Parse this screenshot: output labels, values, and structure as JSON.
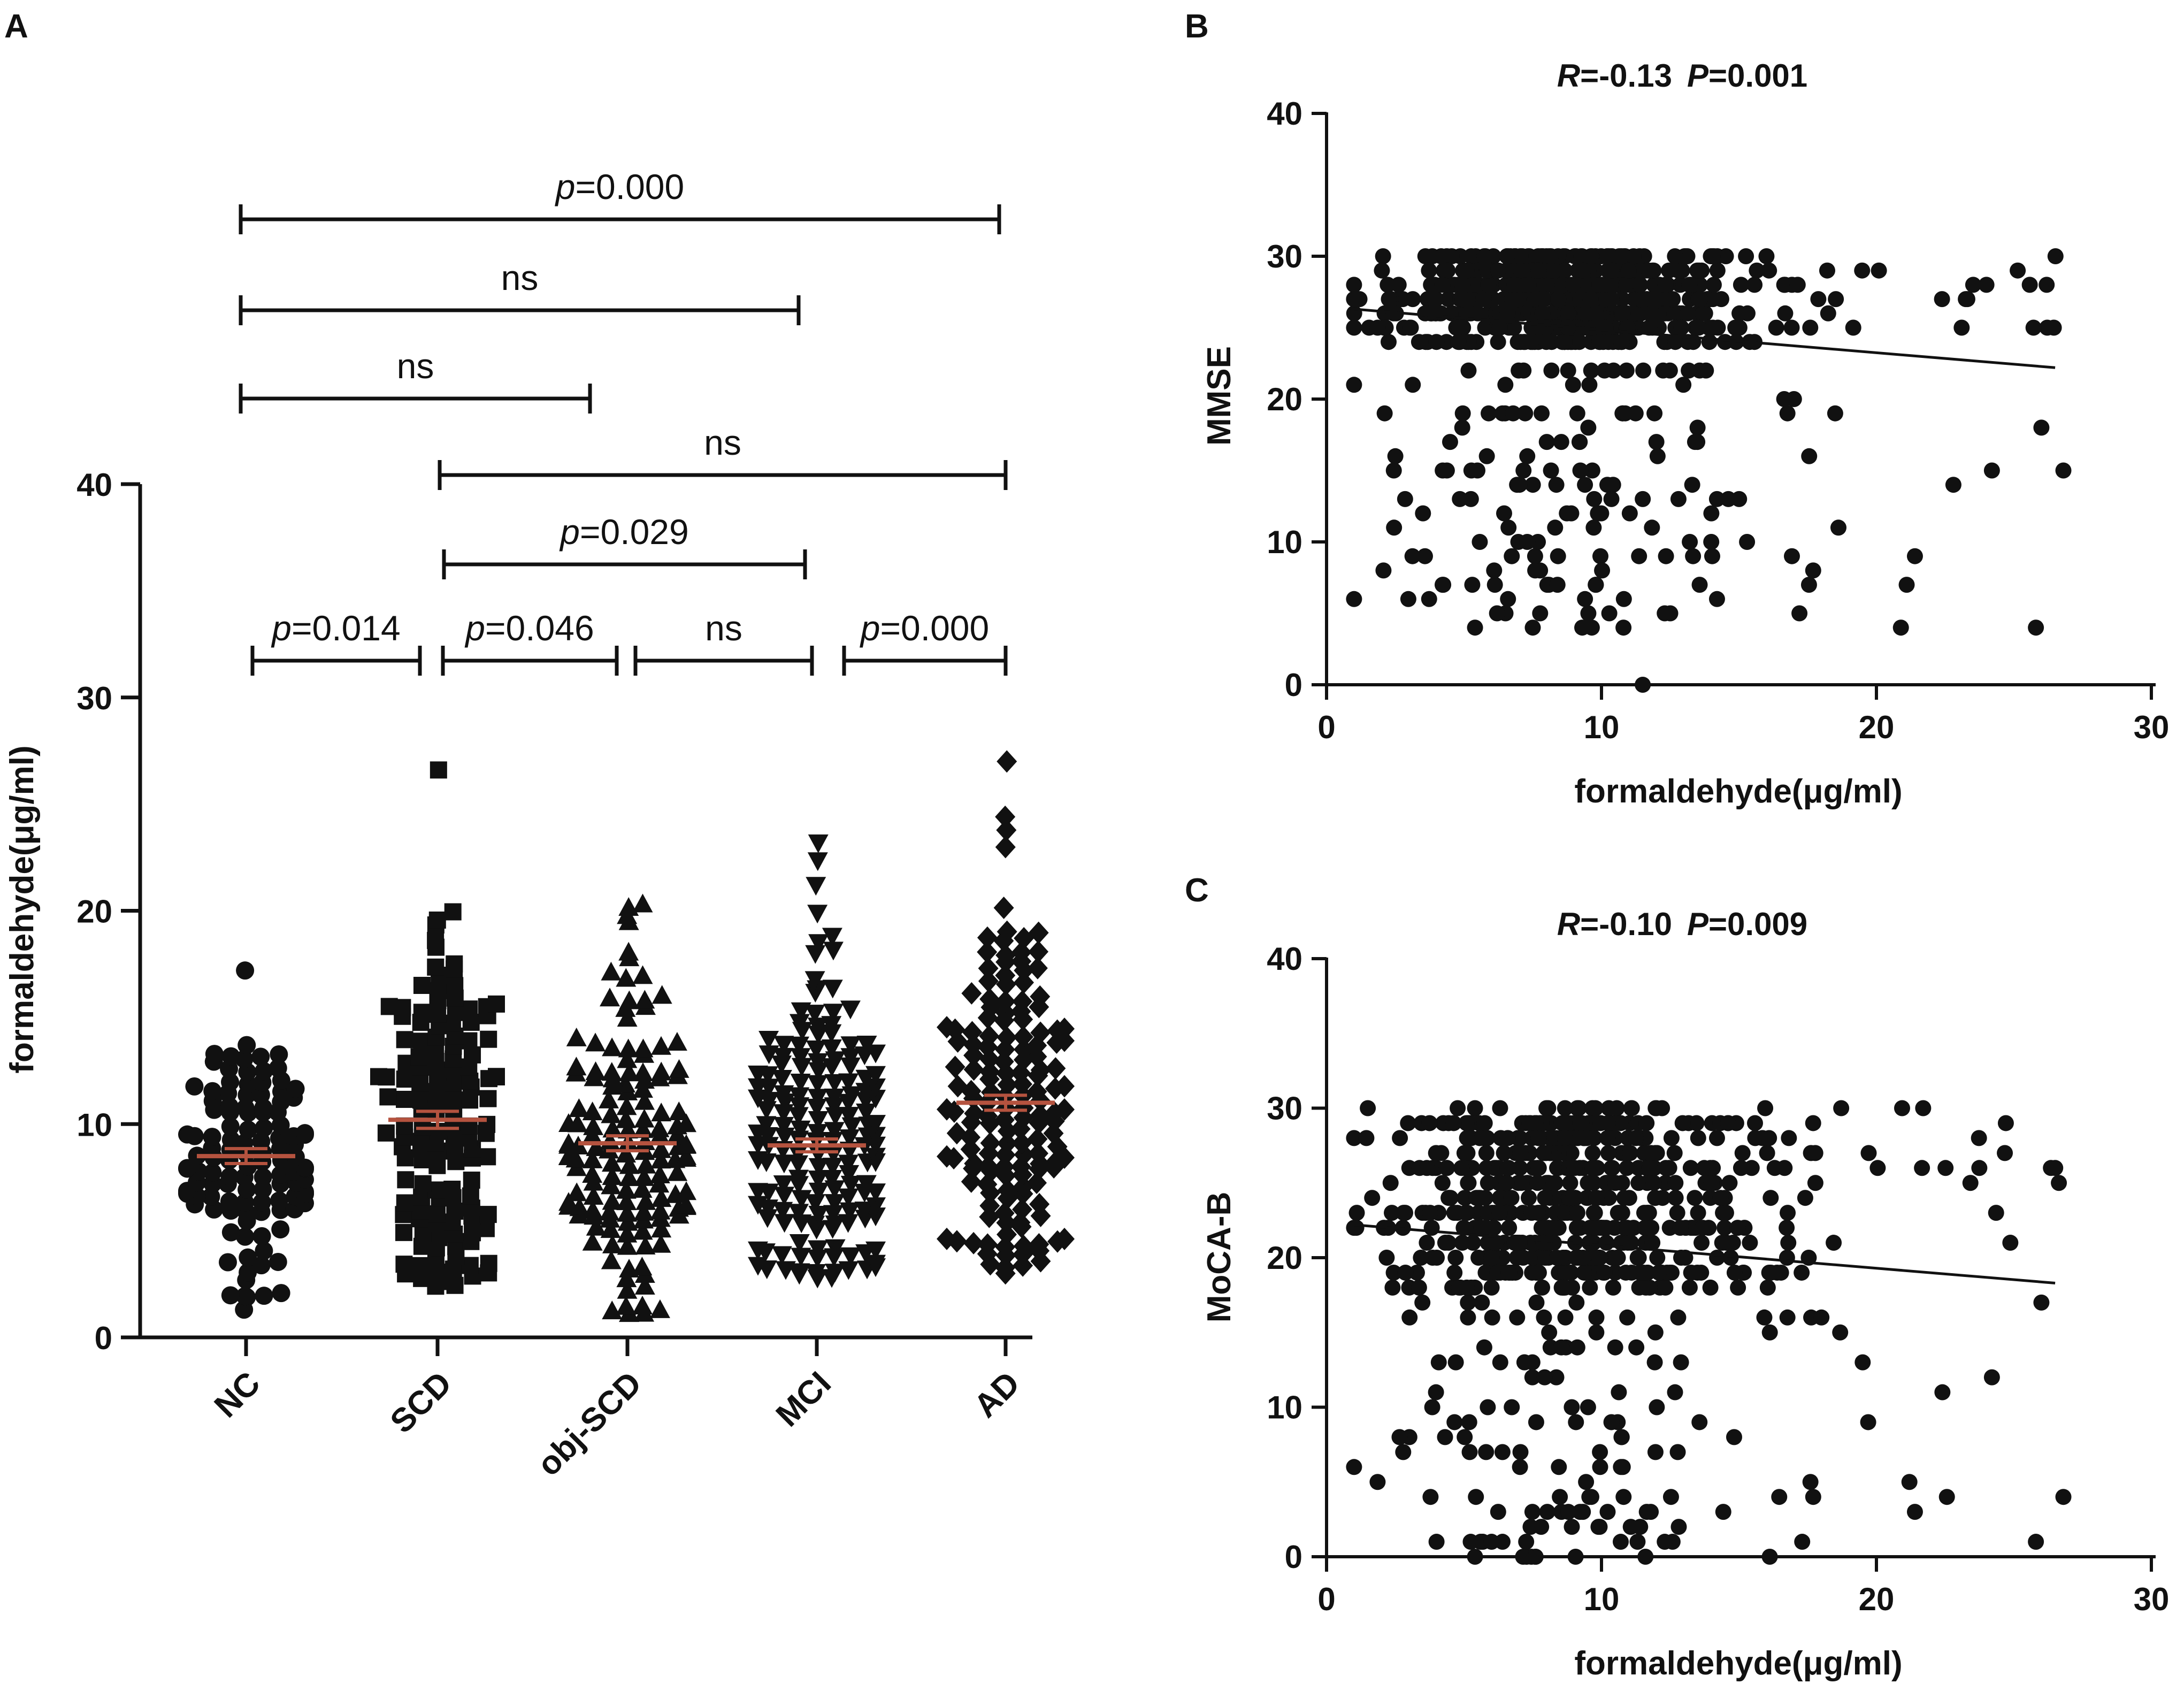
{
  "panel_labels": [
    "A",
    "B",
    "C"
  ],
  "chart_data": [
    {
      "panel": "A",
      "type": "scatter",
      "subtype": "dot-plot with mean ± SEM",
      "ylabel": "formaldehyde(μg/ml)",
      "ylim": [
        0,
        40
      ],
      "yticks": [
        "0",
        "10",
        "20",
        "30",
        "40"
      ],
      "categories": [
        "NC",
        "SCD",
        "obj-SCD",
        "MCI",
        "AD"
      ],
      "markers": [
        "circle",
        "square",
        "triangle-up",
        "triangle-down",
        "diamond"
      ],
      "means": [
        8.5,
        10.2,
        9.1,
        9.0,
        11.0
      ],
      "sem": [
        0.35,
        0.4,
        0.35,
        0.3,
        0.35
      ],
      "ranges": [
        [
          1.3,
          17.2
        ],
        [
          2.4,
          26.6
        ],
        [
          1.1,
          20.3
        ],
        [
          2.8,
          23.2
        ],
        [
          3.0,
          27.0
        ]
      ],
      "n_points": [
        120,
        140,
        150,
        175,
        160
      ],
      "mean_color": "#b5533f",
      "point_color": "#111111",
      "comparisons": [
        {
          "from": "NC",
          "to": "AD",
          "label_prefix": "p",
          "label_value": "=0.000",
          "tier": 6
        },
        {
          "from": "NC",
          "to": "MCI",
          "label_prefix": "",
          "label_value": "ns",
          "tier": 5
        },
        {
          "from": "NC",
          "to": "obj-SCD",
          "label_prefix": "",
          "label_value": "ns",
          "tier": 4
        },
        {
          "from": "SCD",
          "to": "AD",
          "label_prefix": "",
          "label_value": "ns",
          "tier": 3
        },
        {
          "from": "SCD",
          "to": "MCI",
          "label_prefix": "p",
          "label_value": "=0.029",
          "tier": 2
        },
        {
          "from": "NC",
          "to": "SCD",
          "label_prefix": "p",
          "label_value": "=0.014",
          "tier": 1
        },
        {
          "from": "SCD",
          "to": "obj-SCD",
          "label_prefix": "p",
          "label_value": "=0.046",
          "tier": 1
        },
        {
          "from": "obj-SCD",
          "to": "MCI",
          "label_prefix": "",
          "label_value": "ns",
          "tier": 1
        },
        {
          "from": "MCI",
          "to": "AD",
          "label_prefix": "p",
          "label_value": "=0.000",
          "tier": 1
        }
      ]
    },
    {
      "panel": "B",
      "type": "scatter",
      "xlabel": "formaldehyde(μg/ml)",
      "ylabel": "MMSE",
      "xlim": [
        0,
        30
      ],
      "ylim": [
        0,
        40
      ],
      "xticks": [
        "0",
        "10",
        "20",
        "30"
      ],
      "yticks": [
        "0",
        "10",
        "20",
        "30",
        "40"
      ],
      "stat_r_label": "R",
      "stat_r_value": "=-0.13",
      "stat_p_label": "P",
      "stat_p_value": "=0.001",
      "regression": {
        "x": [
          1.0,
          26.5
        ],
        "y": [
          26.3,
          22.2
        ]
      },
      "n_points": 700,
      "extra_points": {
        "x": [
          5.4,
          6.2,
          7.5,
          9.3,
          10.8,
          12.3,
          17.2,
          25.8,
          11.5,
          5.3,
          6.6,
          8.4,
          9.4,
          17.7,
          21.1,
          21.4,
          26.0,
          26.8,
          24.2,
          22.8,
          23.1,
          18.5,
          14.2,
          12.8,
          13.3,
          8.9,
          7.3
        ],
        "y": [
          4,
          5,
          4,
          4,
          4,
          5,
          5,
          4,
          0,
          7,
          6,
          7,
          6,
          8,
          7,
          9,
          18,
          15,
          15,
          14,
          25,
          19,
          13,
          13,
          14,
          12,
          10
        ]
      },
      "dist": {
        "x_mode": 8.5,
        "x_tail": 27,
        "y_high": [
          24,
          30
        ],
        "y_low": [
          4,
          23
        ]
      }
    },
    {
      "panel": "C",
      "type": "scatter",
      "xlabel": "formaldehyde(μg/ml)",
      "ylabel": "MoCA-B",
      "xlim": [
        0,
        30
      ],
      "ylim": [
        0,
        40
      ],
      "xticks": [
        "0",
        "10",
        "20",
        "30"
      ],
      "yticks": [
        "0",
        "10",
        "20",
        "30",
        "40"
      ],
      "stat_r_label": "R",
      "stat_r_value": "=-0.10",
      "stat_p_label": "P",
      "stat_p_value": "=0.009",
      "regression": {
        "x": [
          1.0,
          26.5
        ],
        "y": [
          22.2,
          18.3
        ]
      },
      "n_points": 700,
      "extra_points": {
        "x": [
          5.4,
          6.4,
          7.6,
          10.7,
          11.6,
          12.3,
          17.3,
          25.8,
          26.8,
          21.4,
          21.2,
          26.0,
          24.2,
          22.4,
          18.0,
          19.5,
          19.7,
          17.6,
          1.1,
          1.5
        ],
        "y": [
          0,
          1,
          0,
          1,
          0,
          1,
          1,
          1,
          4,
          3,
          5,
          17,
          12,
          11,
          16,
          13,
          9,
          5,
          23,
          30
        ]
      },
      "dist": {
        "x_mode": 8.5,
        "x_tail": 27,
        "y_high": [
          18,
          30
        ],
        "y_low": [
          0,
          20
        ]
      }
    }
  ]
}
